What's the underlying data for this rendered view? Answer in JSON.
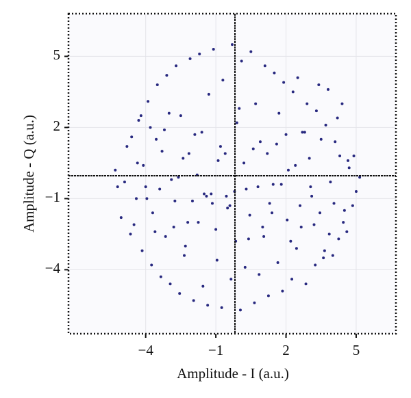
{
  "chart_data": {
    "type": "scatter",
    "x_label": "Amplitude - I (a.u.)",
    "y_label": "Amplitude - Q (a.u.)",
    "color": "#27287f",
    "grid": true,
    "xlim": [
      -7.3,
      6.7
    ],
    "ylim": [
      -6.7,
      6.8
    ],
    "xticks": [
      {
        "value": -4,
        "label": "−4"
      },
      {
        "value": -1,
        "label": "−1"
      },
      2,
      5
    ],
    "yticks": [
      5,
      2,
      {
        "value": -1,
        "label": "−1"
      },
      {
        "value": -4,
        "label": "−4"
      }
    ],
    "x": [
      -5.2,
      -4.8,
      -4.5,
      -4.3,
      -4.1,
      -3.9,
      -3.7,
      -3.5,
      -3.3,
      -3.1,
      -2.9,
      -2.7,
      -2.5,
      -2.3,
      -2.1,
      -1.9,
      -1.7,
      -1.5,
      -1.3,
      -1.1,
      -0.9,
      -0.7,
      -0.5,
      -0.3,
      -0.1,
      0.1,
      0.3,
      0.5,
      0.7,
      0.9,
      1.1,
      1.3,
      1.5,
      1.7,
      1.9,
      2.1,
      2.3,
      2.5,
      2.7,
      2.9,
      3.1,
      3.3,
      3.5,
      3.7,
      3.9,
      4.1,
      4.3,
      4.5,
      4.7,
      5.0,
      -5.05,
      -4.65,
      -4.35,
      -4.15,
      -3.95,
      -3.75,
      -3.55,
      -3.35,
      -3.15,
      -2.95,
      -2.75,
      -2.55,
      -2.35,
      -2.15,
      -1.95,
      -1.75,
      -1.55,
      -1.35,
      -1.15,
      -0.95,
      -0.75,
      -0.55,
      -0.35,
      -0.15,
      0.05,
      0.25,
      0.45,
      0.65,
      0.85,
      1.05,
      1.25,
      1.45,
      1.65,
      1.85,
      2.05,
      2.25,
      2.45,
      2.65,
      2.85,
      3.05,
      3.25,
      3.45,
      3.65,
      3.85,
      4.05,
      4.25,
      4.45,
      4.65,
      4.85,
      5.15,
      -5.3,
      -4.9,
      -4.6,
      -4.4,
      -4.2,
      -4.0,
      -3.8,
      -3.6,
      -3.4,
      -3.2,
      -3.0,
      -2.8,
      -2.6,
      -2.4,
      -2.2,
      -2.0,
      -1.8,
      -1.6,
      -1.4,
      -1.2,
      -1.0,
      -0.8,
      -0.6,
      -0.4,
      -0.2,
      0.0,
      0.2,
      0.4,
      0.6,
      0.8,
      1.0,
      1.2,
      1.4,
      1.6,
      1.8,
      2.0,
      2.2,
      2.4,
      2.6,
      2.8,
      3.0,
      3.2,
      3.4,
      3.6,
      3.8,
      4.0,
      4.2,
      4.4,
      4.6,
      4.9
    ],
    "y": [
      -0.5,
      1.2,
      -2.1,
      2.3,
      0.4,
      3.1,
      -1.6,
      3.8,
      1.0,
      4.2,
      -0.2,
      4.6,
      2.5,
      -3.0,
      4.9,
      1.7,
      5.1,
      -0.8,
      3.4,
      5.3,
      0.6,
      4.0,
      -1.4,
      5.5,
      2.2,
      4.8,
      -0.6,
      5.2,
      3.0,
      1.4,
      4.6,
      -1.2,
      4.3,
      2.6,
      3.9,
      0.2,
      3.5,
      4.1,
      1.8,
      3.0,
      -0.9,
      2.7,
      1.5,
      2.1,
      -0.3,
      1.4,
      0.8,
      -1.5,
      0.3,
      -0.7,
      -1.8,
      -2.5,
      0.5,
      -3.2,
      -1.0,
      -3.8,
      1.5,
      -4.3,
      -2.6,
      -4.6,
      -1.1,
      -5.0,
      -3.4,
      0.9,
      -5.3,
      -2.0,
      -4.7,
      -5.5,
      -1.2,
      -3.6,
      -5.6,
      -0.9,
      -4.4,
      -2.8,
      -5.7,
      -3.9,
      -1.7,
      -5.4,
      -4.2,
      -2.6,
      -5.1,
      -0.4,
      -3.7,
      -4.9,
      -1.9,
      -4.4,
      -3.1,
      -2.2,
      -4.6,
      -0.5,
      -3.8,
      -1.6,
      -3.2,
      -2.5,
      -1.2,
      -2.7,
      -2.0,
      0.6,
      -1.3,
      -0.1,
      0.2,
      -0.3,
      1.6,
      -1.0,
      2.5,
      -0.5,
      2.0,
      -2.4,
      -0.6,
      1.9,
      2.6,
      -2.2,
      -0.1,
      0.7,
      -2.0,
      -1.1,
      0.0,
      1.8,
      -0.9,
      -0.8,
      -2.3,
      1.2,
      0.9,
      -1.3,
      -0.7,
      2.8,
      0.5,
      -2.7,
      1.1,
      -0.5,
      -2.2,
      0.9,
      -1.6,
      1.3,
      -0.4,
      1.7,
      -2.8,
      0.4,
      -1.3,
      1.8,
      0.7,
      -2.1,
      3.8,
      -3.5,
      3.6,
      -3.4,
      2.4,
      3.0,
      -2.4,
      0.8
    ]
  }
}
